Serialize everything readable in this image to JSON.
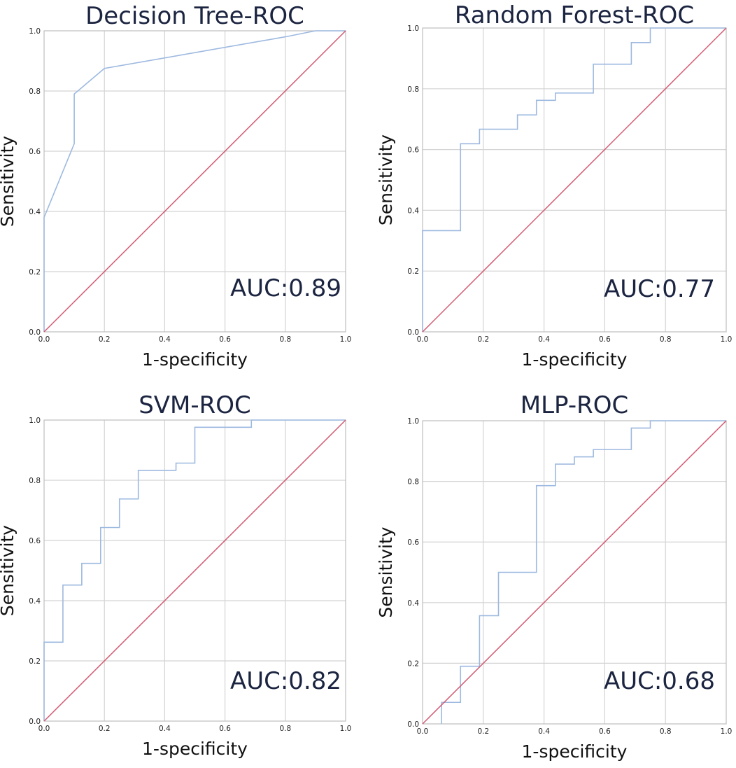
{
  "chart_data": [
    {
      "type": "line",
      "title": "Decision Tree-ROC",
      "xlabel": "1-specificity",
      "ylabel": "Sensitivity",
      "xlim": [
        0,
        1
      ],
      "ylim": [
        0,
        1
      ],
      "xticks": [
        "0.0",
        "0.2",
        "0.4",
        "0.6",
        "0.8",
        "1.0"
      ],
      "yticks": [
        "0.0",
        "0.2",
        "0.4",
        "0.6",
        "0.8",
        "1.0"
      ],
      "annotation": "AUC:0.89",
      "grid": true,
      "series": [
        {
          "name": "ROC",
          "color": "#9db9e0",
          "x": [
            0,
            0,
            0.1,
            0.1,
            0.2,
            0.8,
            0.9,
            1.0
          ],
          "y": [
            0,
            0.38,
            0.625,
            0.79,
            0.875,
            0.98,
            1.0,
            1.0
          ]
        },
        {
          "name": "Reference line",
          "color": "#d45a72",
          "x": [
            0,
            1
          ],
          "y": [
            0,
            1
          ]
        }
      ]
    },
    {
      "type": "line",
      "title": "Random Forest-ROC",
      "xlabel": "1-specificity",
      "ylabel": "Sensitivity",
      "xlim": [
        0,
        1
      ],
      "ylim": [
        0,
        1
      ],
      "xticks": [
        "0.0",
        "0.2",
        "0.4",
        "0.6",
        "0.8",
        "1.0"
      ],
      "yticks": [
        "0.0",
        "0.2",
        "0.4",
        "0.6",
        "0.8",
        "1.0"
      ],
      "annotation": "AUC:0.77",
      "grid": true,
      "series": [
        {
          "name": "ROC",
          "color": "#9db9e0",
          "x": [
            0,
            0,
            0.125,
            0.125,
            0.1875,
            0.1875,
            0.3125,
            0.3125,
            0.375,
            0.375,
            0.4375,
            0.4375,
            0.5625,
            0.5625,
            0.6875,
            0.6875,
            0.75,
            0.75,
            1.0
          ],
          "y": [
            0,
            0.333,
            0.333,
            0.619,
            0.619,
            0.667,
            0.667,
            0.714,
            0.714,
            0.762,
            0.762,
            0.786,
            0.786,
            0.881,
            0.881,
            0.952,
            0.952,
            1.0,
            1.0
          ]
        },
        {
          "name": "Reference line",
          "color": "#d45a72",
          "x": [
            0,
            1
          ],
          "y": [
            0,
            1
          ]
        }
      ]
    },
    {
      "type": "line",
      "title": "SVM-ROC",
      "xlabel": "1-specificity",
      "ylabel": "Sensitivity",
      "xlim": [
        0,
        1
      ],
      "ylim": [
        0,
        1
      ],
      "xticks": [
        "0.0",
        "0.2",
        "0.4",
        "0.6",
        "0.8",
        "1.0"
      ],
      "yticks": [
        "0.0",
        "0.2",
        "0.4",
        "0.6",
        "0.8",
        "1.0"
      ],
      "annotation": "AUC:0.82",
      "grid": true,
      "series": [
        {
          "name": "ROC",
          "color": "#9db9e0",
          "x": [
            0,
            0,
            0.0625,
            0.0625,
            0.125,
            0.125,
            0.1875,
            0.1875,
            0.25,
            0.25,
            0.3125,
            0.3125,
            0.4375,
            0.4375,
            0.5,
            0.5,
            0.6875,
            0.6875,
            1.0
          ],
          "y": [
            0,
            0.262,
            0.262,
            0.452,
            0.452,
            0.524,
            0.524,
            0.643,
            0.643,
            0.738,
            0.738,
            0.833,
            0.833,
            0.857,
            0.857,
            0.976,
            0.976,
            1.0,
            1.0
          ]
        },
        {
          "name": "Reference line",
          "color": "#d45a72",
          "x": [
            0,
            1
          ],
          "y": [
            0,
            1
          ]
        }
      ]
    },
    {
      "type": "line",
      "title": "MLP-ROC",
      "xlabel": "1-specificity",
      "ylabel": "Sensitivity",
      "xlim": [
        0,
        1
      ],
      "ylim": [
        0,
        1
      ],
      "xticks": [
        "0.0",
        "0.2",
        "0.4",
        "0.6",
        "0.8",
        "1.0"
      ],
      "yticks": [
        "0.0",
        "0.2",
        "0.4",
        "0.6",
        "0.8",
        "1.0"
      ],
      "annotation": "AUC:0.68",
      "grid": true,
      "series": [
        {
          "name": "ROC",
          "color": "#9db9e0",
          "x": [
            0.0625,
            0.0625,
            0.125,
            0.125,
            0.1875,
            0.1875,
            0.25,
            0.25,
            0.375,
            0.375,
            0.4375,
            0.4375,
            0.5,
            0.5,
            0.5625,
            0.5625,
            0.6875,
            0.6875,
            0.75,
            0.75,
            1.0
          ],
          "y": [
            0,
            0.071,
            0.071,
            0.19,
            0.19,
            0.357,
            0.357,
            0.5,
            0.5,
            0.786,
            0.786,
            0.857,
            0.857,
            0.881,
            0.881,
            0.905,
            0.905,
            0.976,
            0.976,
            1.0,
            1.0
          ]
        },
        {
          "name": "Reference line",
          "color": "#d45a72",
          "x": [
            0,
            1
          ],
          "y": [
            0,
            1
          ]
        }
      ]
    }
  ]
}
